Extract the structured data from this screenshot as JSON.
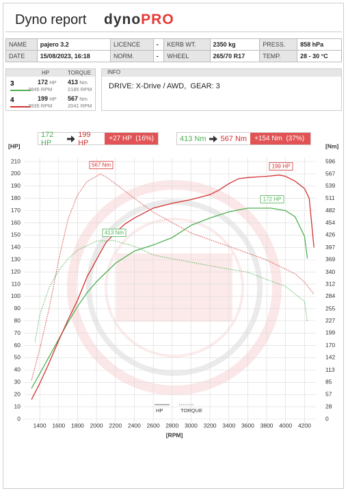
{
  "header": {
    "title": "Dyno report",
    "brand": "dyno",
    "brand_accent": "PRO"
  },
  "info_table": {
    "rows": [
      [
        "NAME",
        "pajero 3.2",
        "LICENCE",
        "-",
        "KERB WT.",
        "2350 kg",
        "PRESS.",
        "858 hPa"
      ],
      [
        "DATE",
        "15/08/2023, 16:18",
        "NORM.",
        "-",
        "WHEEL",
        "265/70 R17",
        "TEMP.",
        "28 - 30 °C"
      ]
    ]
  },
  "runs": {
    "headers": [
      "HP",
      "TORQUE"
    ],
    "rows": [
      {
        "run": "3",
        "color": "#4caf50",
        "hp": "172",
        "hp_unit": "HP",
        "hp_rpm": "3845 RPM",
        "torque": "413",
        "torque_unit": "Nm",
        "torque_rpm": "2185 RPM"
      },
      {
        "run": "4",
        "color": "#d32f2f",
        "hp": "199",
        "hp_unit": "HP",
        "hp_rpm": "3935 RPM",
        "torque": "567",
        "torque_unit": "Nm",
        "torque_rpm": "2041 RPM"
      }
    ]
  },
  "info": {
    "title": "INFO",
    "text": "DRIVE: X-Drive / AWD,  GEAR: 3"
  },
  "comparison": [
    {
      "from": "172 HP",
      "to": "199 HP",
      "delta": "+27 HP  (16%)"
    },
    {
      "from": "413 Nm",
      "to": "567 Nm",
      "delta": "+154 Nm  (37%)"
    }
  ],
  "chart_data": {
    "type": "line",
    "y_label": "[HP]",
    "y2_label": "[Nm]",
    "x_label": "[RPM]",
    "xlim": [
      1240,
      4320
    ],
    "xticks": [
      1400,
      1600,
      1800,
      2000,
      2200,
      2400,
      2600,
      2800,
      3000,
      3200,
      3400,
      3600,
      3800,
      4000,
      4200
    ],
    "ylim": [
      0,
      210
    ],
    "yticks": [
      0,
      10,
      20,
      30,
      40,
      50,
      60,
      70,
      80,
      90,
      100,
      110,
      120,
      130,
      140,
      150,
      160,
      170,
      180,
      190,
      200,
      210
    ],
    "y2lim": [
      0,
      596
    ],
    "y2ticks": [
      0,
      28,
      57,
      85,
      113,
      142,
      170,
      199,
      227,
      255,
      284,
      312,
      340,
      369,
      397,
      426,
      454,
      482,
      511,
      539,
      567,
      596
    ],
    "grid": true,
    "legend": [
      {
        "name": "HP",
        "style": "solid"
      },
      {
        "name": "TORQUE",
        "style": "dotted"
      }
    ],
    "series": [
      {
        "color": "#4caf50",
        "style": "solid",
        "x": [
          1313,
          1400,
          1500,
          1600,
          1700,
          1800,
          1900,
          2000,
          2200,
          2400,
          2600,
          2800,
          3000,
          3200,
          3400,
          3600,
          3845,
          4000,
          4100,
          4200,
          4230
        ],
        "values": [
          25,
          37,
          51,
          65,
          79,
          92,
          103,
          112,
          127,
          137,
          142,
          148,
          158,
          164,
          169,
          172,
          172,
          170,
          165,
          149,
          131
        ]
      },
      {
        "color": "#4caf50",
        "style": "dotted",
        "axis": "y2",
        "x": [
          1350,
          1400,
          1500,
          1600,
          1700,
          1800,
          2000,
          2185,
          2400,
          2600,
          2800,
          3000,
          3200,
          3400,
          3600,
          3800,
          4000,
          4200,
          4230
        ],
        "values": [
          178,
          241,
          305,
          344,
          371,
          391,
          412,
          413,
          400,
          380,
          371,
          363,
          355,
          347,
          340,
          323,
          307,
          272,
          225
        ]
      },
      {
        "color": "#d32f2f",
        "style": "solid",
        "x": [
          1313,
          1400,
          1500,
          1600,
          1700,
          1800,
          1900,
          2000,
          2100,
          2200,
          2300,
          2400,
          2500,
          2600,
          2800,
          3000,
          3200,
          3300,
          3400,
          3500,
          3600,
          3800,
          3935,
          4000,
          4100,
          4200,
          4250,
          4300
        ],
        "values": [
          16,
          29,
          46,
          64,
          81,
          97,
          116,
          130,
          144,
          152,
          159,
          164,
          168,
          172,
          176,
          179,
          183,
          187,
          192,
          196,
          197,
          198,
          199,
          198,
          194,
          188,
          180,
          140
        ]
      },
      {
        "color": "#d32f2f",
        "style": "dotted",
        "axis": "y2",
        "x": [
          1313,
          1400,
          1500,
          1600,
          1700,
          1800,
          1900,
          2041,
          2100,
          2200,
          2400,
          2600,
          2800,
          3000,
          3200,
          3400,
          3600,
          3800,
          4000,
          4100,
          4200,
          4300
        ],
        "values": [
          90,
          162,
          257,
          368,
          463,
          519,
          550,
          567,
          561,
          545,
          511,
          479,
          455,
          431,
          415,
          400,
          384,
          368,
          347,
          336,
          317,
          289
        ]
      }
    ],
    "annotations": [
      {
        "text": "567 Nm",
        "color": "#d32f2f"
      },
      {
        "text": "199 HP",
        "color": "#d32f2f"
      },
      {
        "text": "172 HP",
        "color": "#4caf50"
      },
      {
        "text": "413 Nm",
        "color": "#4caf50"
      }
    ]
  }
}
